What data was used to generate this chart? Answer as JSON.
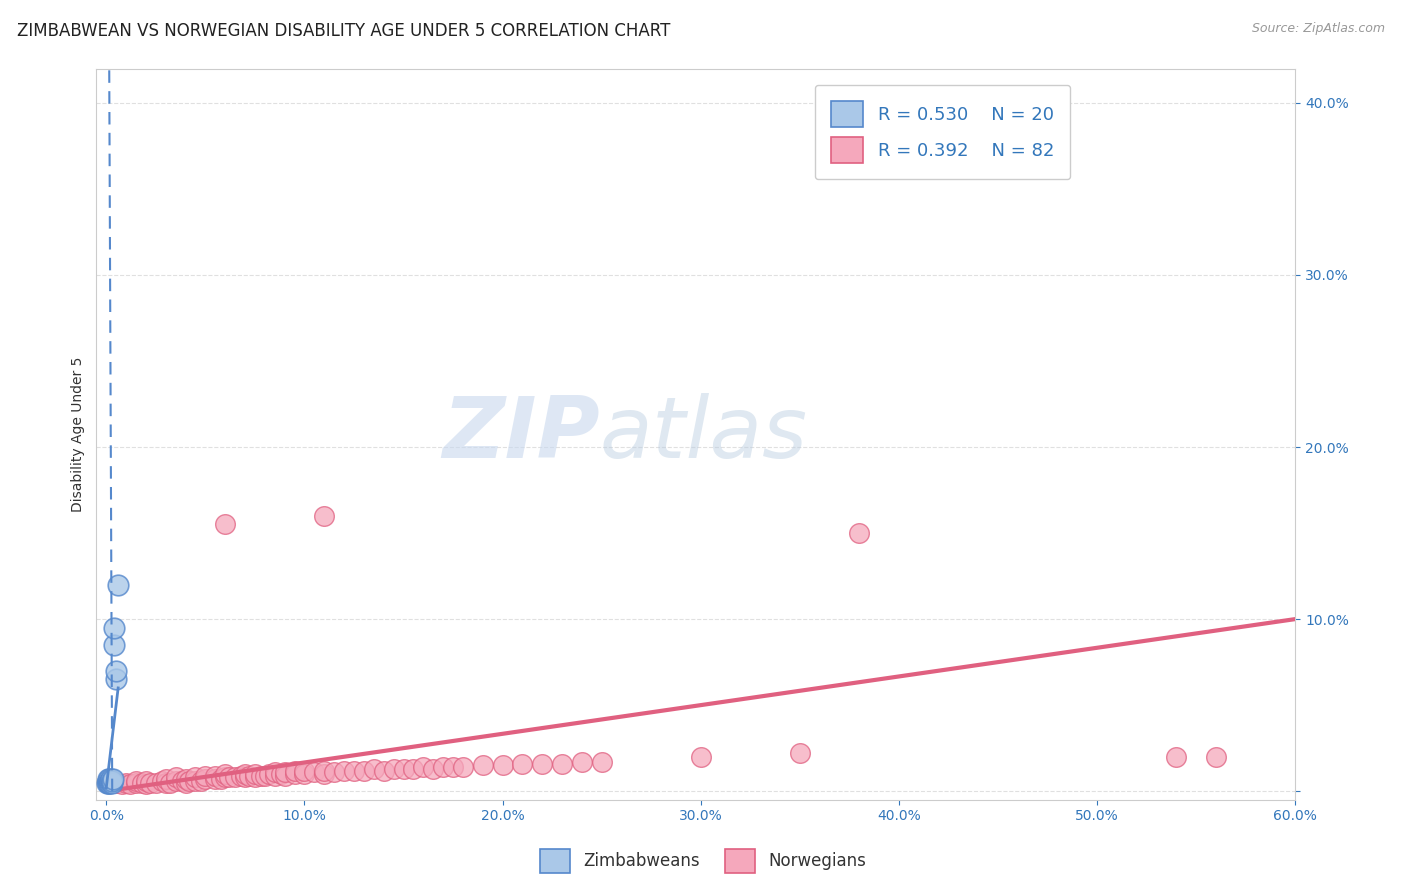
{
  "title": "ZIMBABWEAN VS NORWEGIAN DISABILITY AGE UNDER 5 CORRELATION CHART",
  "source": "Source: ZipAtlas.com",
  "ylabel": "Disability Age Under 5",
  "xlabel": "",
  "xlim": [
    -0.005,
    0.6
  ],
  "ylim": [
    -0.005,
    0.42
  ],
  "xticks": [
    0.0,
    0.1,
    0.2,
    0.3,
    0.4,
    0.5,
    0.6
  ],
  "yticks": [
    0.0,
    0.1,
    0.2,
    0.3,
    0.4
  ],
  "xtick_labels": [
    "0.0%",
    "10.0%",
    "20.0%",
    "30.0%",
    "40.0%",
    "50.0%",
    "60.0%"
  ],
  "ytick_labels": [
    "",
    "10.0%",
    "20.0%",
    "30.0%",
    "40.0%"
  ],
  "legend_bottom": [
    "Zimbabweans",
    "Norwegians"
  ],
  "zim_R": 0.53,
  "zim_N": 20,
  "nor_R": 0.392,
  "nor_N": 82,
  "zim_color": "#aac8e8",
  "nor_color": "#f5a8bc",
  "zim_line_color": "#5588cc",
  "nor_line_color": "#e06080",
  "background_color": "#ffffff",
  "grid_color": "#e0e0e0",
  "watermark_zip": "ZIP",
  "watermark_atlas": "atlas",
  "title_fontsize": 12,
  "axis_label_fontsize": 10,
  "tick_fontsize": 10,
  "nor_line_start_x": 0.0,
  "nor_line_start_y": 0.0,
  "nor_line_end_x": 0.6,
  "nor_line_end_y": 0.1,
  "zim_line_x0": 0.0015,
  "zim_line_y0": 0.42,
  "zim_line_x1": 0.003,
  "zim_line_y1": 0.0,
  "zim_scatter_x": [
    0.0005,
    0.0008,
    0.001,
    0.001,
    0.0012,
    0.0015,
    0.0015,
    0.0018,
    0.002,
    0.002,
    0.0022,
    0.0025,
    0.003,
    0.003,
    0.0035,
    0.004,
    0.004,
    0.005,
    0.005,
    0.006
  ],
  "zim_scatter_y": [
    0.005,
    0.006,
    0.005,
    0.007,
    0.006,
    0.005,
    0.007,
    0.006,
    0.005,
    0.006,
    0.006,
    0.007,
    0.005,
    0.006,
    0.007,
    0.085,
    0.095,
    0.065,
    0.07,
    0.12
  ],
  "nor_scatter_x": [
    0.005,
    0.008,
    0.01,
    0.012,
    0.015,
    0.015,
    0.018,
    0.02,
    0.02,
    0.022,
    0.025,
    0.028,
    0.03,
    0.03,
    0.032,
    0.035,
    0.035,
    0.038,
    0.04,
    0.04,
    0.042,
    0.045,
    0.045,
    0.048,
    0.05,
    0.05,
    0.055,
    0.055,
    0.058,
    0.06,
    0.06,
    0.062,
    0.065,
    0.068,
    0.07,
    0.07,
    0.072,
    0.075,
    0.075,
    0.078,
    0.08,
    0.082,
    0.085,
    0.085,
    0.088,
    0.09,
    0.09,
    0.095,
    0.095,
    0.1,
    0.1,
    0.105,
    0.11,
    0.11,
    0.115,
    0.12,
    0.125,
    0.13,
    0.135,
    0.14,
    0.145,
    0.15,
    0.155,
    0.16,
    0.165,
    0.17,
    0.175,
    0.18,
    0.19,
    0.2,
    0.21,
    0.22,
    0.23,
    0.24,
    0.25,
    0.3,
    0.35,
    0.38,
    0.54,
    0.56,
    0.06,
    0.11
  ],
  "nor_scatter_y": [
    0.005,
    0.004,
    0.005,
    0.004,
    0.005,
    0.006,
    0.005,
    0.004,
    0.006,
    0.005,
    0.005,
    0.006,
    0.005,
    0.007,
    0.005,
    0.006,
    0.008,
    0.006,
    0.005,
    0.007,
    0.006,
    0.006,
    0.008,
    0.006,
    0.007,
    0.009,
    0.007,
    0.009,
    0.007,
    0.008,
    0.01,
    0.008,
    0.008,
    0.009,
    0.008,
    0.01,
    0.009,
    0.008,
    0.01,
    0.009,
    0.009,
    0.01,
    0.009,
    0.011,
    0.01,
    0.009,
    0.011,
    0.01,
    0.012,
    0.01,
    0.012,
    0.011,
    0.01,
    0.012,
    0.011,
    0.012,
    0.012,
    0.012,
    0.013,
    0.012,
    0.013,
    0.013,
    0.013,
    0.014,
    0.013,
    0.014,
    0.014,
    0.014,
    0.015,
    0.015,
    0.016,
    0.016,
    0.016,
    0.017,
    0.017,
    0.02,
    0.022,
    0.15,
    0.02,
    0.02,
    0.155,
    0.16
  ]
}
